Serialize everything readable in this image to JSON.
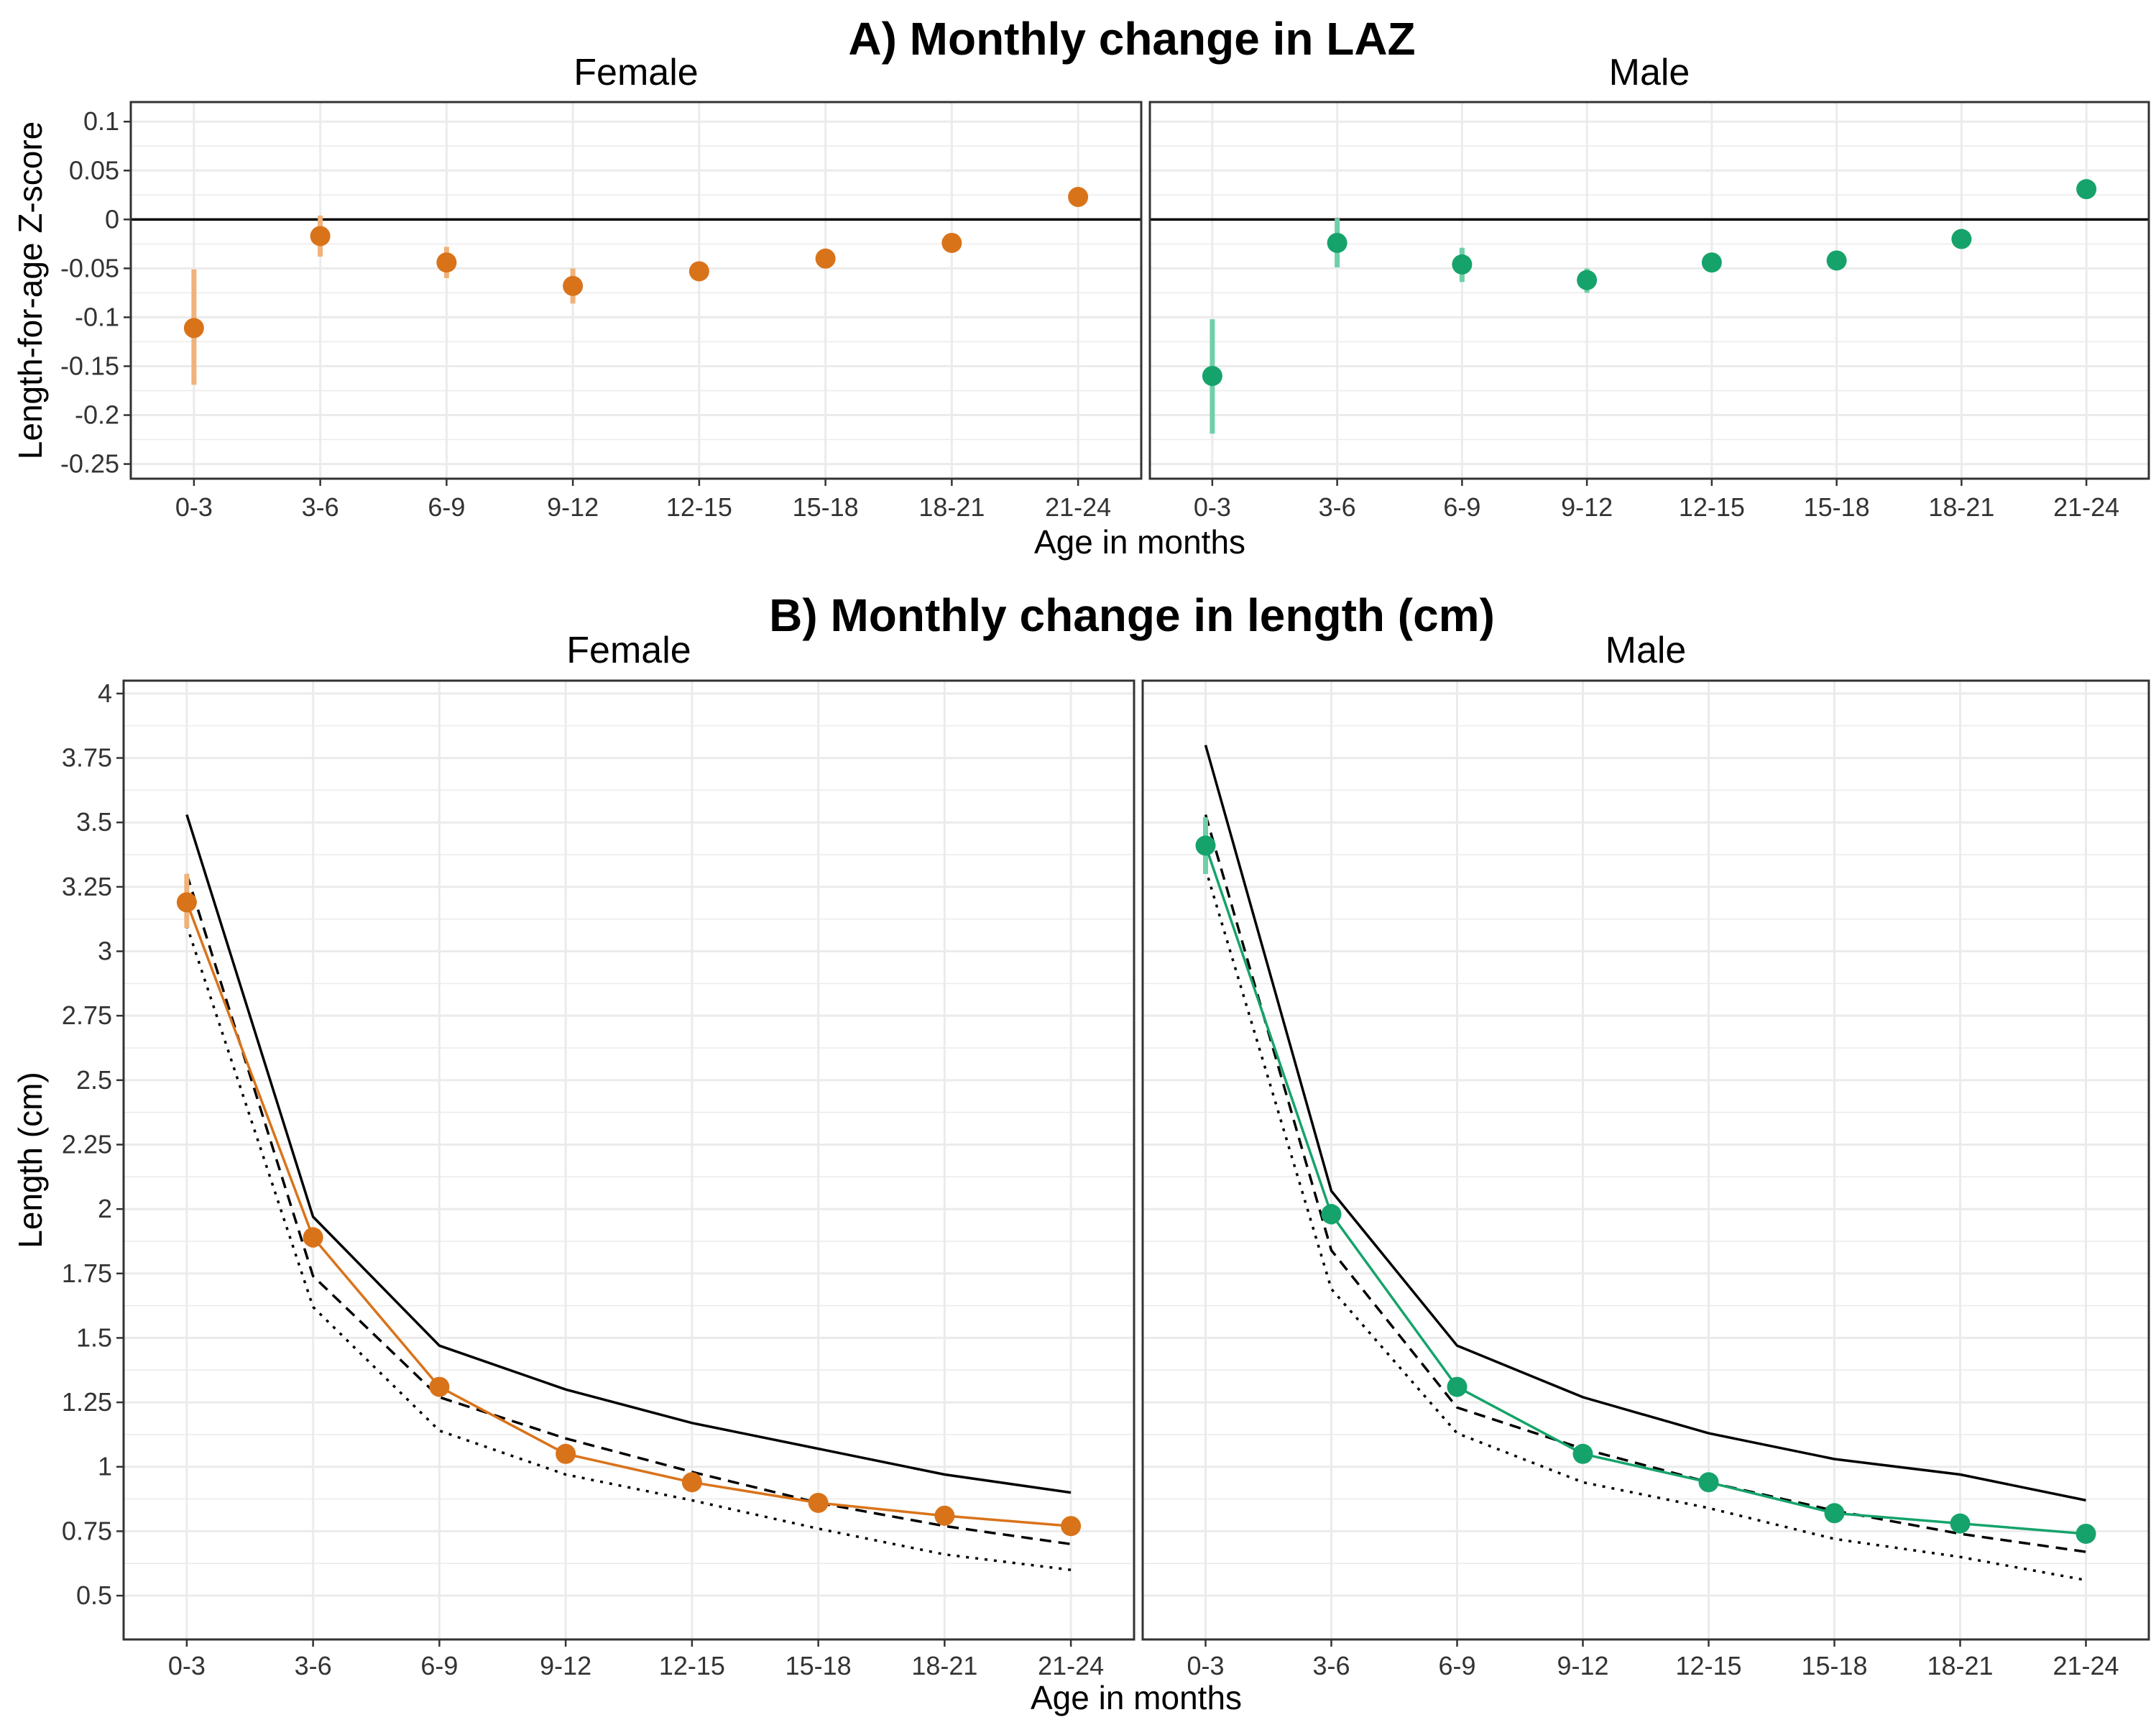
{
  "colors": {
    "female": "#d9731a",
    "female_ci": "#f0b27a",
    "male": "#16a36b",
    "male_ci": "#6fd0a8",
    "reference": "#000000"
  },
  "chart_data": [
    {
      "type": "scatter",
      "title": "A) Monthly change in LAZ",
      "xlabel": "Age in months",
      "ylabel": "Length-for-age Z-score",
      "categories": [
        "0-3",
        "3-6",
        "6-9",
        "9-12",
        "12-15",
        "15-18",
        "18-21",
        "21-24"
      ],
      "yticks": [
        "0.1",
        "0.05",
        "0",
        "-0.05",
        "-0.1",
        "-0.15",
        "-0.2",
        "-0.25"
      ],
      "ylim": [
        -0.265,
        0.12
      ],
      "hline": 0,
      "grid": true,
      "panels": [
        {
          "label": "Female",
          "color_key": "female",
          "values": [
            -0.111,
            -0.017,
            -0.044,
            -0.068,
            -0.053,
            -0.04,
            -0.024,
            0.023
          ],
          "ci_low": [
            -0.169,
            -0.038,
            -0.06,
            -0.086,
            -0.062,
            -0.049,
            -0.032,
            0.016
          ],
          "ci_high": [
            -0.051,
            0.004,
            -0.028,
            -0.05,
            -0.044,
            -0.031,
            -0.016,
            0.03
          ]
        },
        {
          "label": "Male",
          "color_key": "male",
          "values": [
            -0.16,
            -0.024,
            -0.046,
            -0.062,
            -0.044,
            -0.042,
            -0.02,
            0.031
          ],
          "ci_low": [
            -0.219,
            -0.049,
            -0.064,
            -0.075,
            -0.054,
            -0.05,
            -0.028,
            0.024
          ],
          "ci_high": [
            -0.102,
            0.001,
            -0.029,
            -0.05,
            -0.034,
            -0.034,
            -0.012,
            0.038
          ]
        }
      ]
    },
    {
      "type": "line",
      "title": "B) Monthly change in length (cm)",
      "xlabel": "Age in months",
      "ylabel": "Length (cm)",
      "categories": [
        "0-3",
        "3-6",
        "6-9",
        "9-12",
        "12-15",
        "15-18",
        "18-21",
        "21-24"
      ],
      "yticks": [
        "4",
        "3.75",
        "3.5",
        "3.25",
        "3",
        "2.75",
        "2.5",
        "2.25",
        "2",
        "1.75",
        "1.5",
        "1.25",
        "1",
        "0.75",
        "0.5"
      ],
      "ylim": [
        0.33,
        4.05
      ],
      "grid": true,
      "panels": [
        {
          "label": "Female",
          "color_key": "female",
          "values": [
            3.19,
            1.89,
            1.31,
            1.05,
            0.94,
            0.86,
            0.81,
            0.77
          ],
          "ci_low": [
            3.09,
            1.85,
            1.28,
            1.02,
            0.92,
            0.84,
            0.79,
            0.75
          ],
          "ci_high": [
            3.3,
            1.93,
            1.34,
            1.08,
            0.96,
            0.88,
            0.83,
            0.79
          ],
          "reference": {
            "solid": [
              3.53,
              1.97,
              1.47,
              1.3,
              1.17,
              1.07,
              0.97,
              0.9
            ],
            "dashed": [
              3.3,
              1.74,
              1.27,
              1.11,
              0.98,
              0.86,
              0.77,
              0.7
            ],
            "dotted": [
              3.1,
              1.62,
              1.14,
              0.97,
              0.87,
              0.76,
              0.66,
              0.6
            ]
          }
        },
        {
          "label": "Male",
          "color_key": "male",
          "values": [
            3.41,
            1.98,
            1.31,
            1.05,
            0.94,
            0.82,
            0.78,
            0.74
          ],
          "ci_low": [
            3.3,
            1.94,
            1.28,
            1.03,
            0.92,
            0.8,
            0.76,
            0.72
          ],
          "ci_high": [
            3.52,
            2.02,
            1.34,
            1.07,
            0.96,
            0.84,
            0.8,
            0.76
          ],
          "reference": {
            "solid": [
              3.8,
              2.07,
              1.47,
              1.27,
              1.13,
              1.03,
              0.97,
              0.87
            ],
            "dashed": [
              3.53,
              1.84,
              1.23,
              1.07,
              0.94,
              0.83,
              0.74,
              0.67
            ],
            "dotted": [
              3.32,
              1.69,
              1.13,
              0.94,
              0.84,
              0.72,
              0.65,
              0.56
            ]
          }
        }
      ]
    }
  ]
}
